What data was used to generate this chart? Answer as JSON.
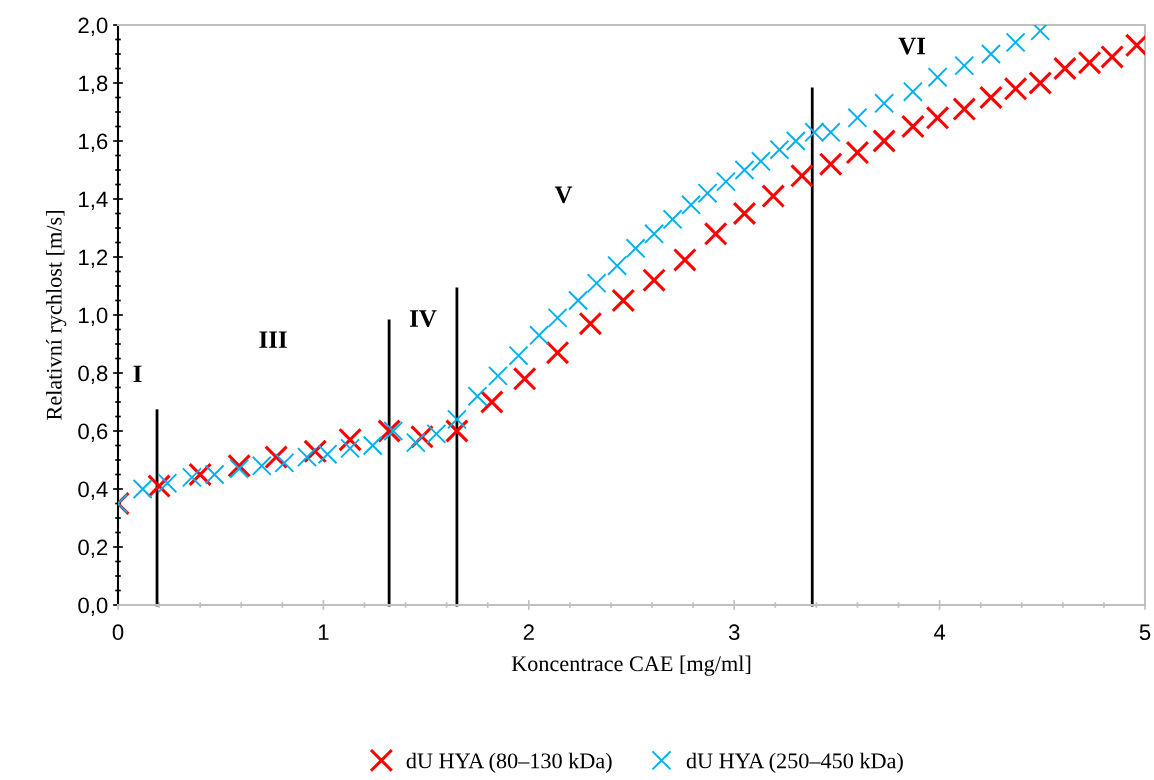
{
  "chart_data": {
    "type": "scatter",
    "xlabel": "Koncentrace CAE [mg/ml]",
    "ylabel": "Relativní rychlost [m/s]",
    "xlim": [
      0,
      5
    ],
    "xticks": [
      0,
      1,
      2,
      3,
      4,
      5
    ],
    "ylim": [
      0,
      2
    ],
    "yticks": [
      {
        "value": 0,
        "label": "0,0"
      },
      {
        "value": 0.2,
        "label": "0,2"
      },
      {
        "value": 0.4,
        "label": "0,4"
      },
      {
        "value": 0.6,
        "label": "0,6"
      },
      {
        "value": 0.8,
        "label": "0,8"
      },
      {
        "value": 1.0,
        "label": "1,0"
      },
      {
        "value": 1.2,
        "label": "1,2"
      },
      {
        "value": 1.4,
        "label": "1,4"
      },
      {
        "value": 1.6,
        "label": "1,6"
      },
      {
        "value": 1.8,
        "label": "1,8"
      },
      {
        "value": 2.0,
        "label": "2,0"
      }
    ],
    "marker": "cross",
    "grid": false,
    "legend": "bottom",
    "series": [
      {
        "name": "dU HYA (80–130 kDa)",
        "color": "#ff0000",
        "x": [
          0,
          0.2,
          0.4,
          0.59,
          0.77,
          0.96,
          1.13,
          1.32,
          1.48,
          1.65,
          1.82,
          1.98,
          2.14,
          2.3,
          2.46,
          2.61,
          2.76,
          2.91,
          3.05,
          3.19,
          3.33,
          3.47,
          3.6,
          3.73,
          3.87,
          3.99,
          4.12,
          4.25,
          4.37,
          4.49,
          4.61,
          4.73,
          4.84,
          4.96
        ],
        "values": [
          0.35,
          0.41,
          0.45,
          0.48,
          0.51,
          0.53,
          0.57,
          0.6,
          0.58,
          0.6,
          0.7,
          0.78,
          0.87,
          0.97,
          1.05,
          1.12,
          1.19,
          1.28,
          1.35,
          1.41,
          1.48,
          1.52,
          1.56,
          1.6,
          1.65,
          1.68,
          1.71,
          1.75,
          1.78,
          1.8,
          1.85,
          1.87,
          1.89,
          1.93
        ]
      },
      {
        "name": "dU HYA (250–450 kDa)",
        "color": "#00b0f0",
        "x": [
          0,
          0.12,
          0.24,
          0.36,
          0.47,
          0.59,
          0.7,
          0.81,
          0.92,
          1.02,
          1.13,
          1.24,
          1.34,
          1.45,
          1.55,
          1.65,
          1.75,
          1.85,
          1.95,
          2.05,
          2.14,
          2.24,
          2.33,
          2.43,
          2.52,
          2.61,
          2.7,
          2.79,
          2.87,
          2.96,
          3.05,
          3.13,
          3.22,
          3.3,
          3.39,
          3.47,
          3.6,
          3.73,
          3.87,
          3.99,
          4.12,
          4.25,
          4.37,
          4.49
        ],
        "values": [
          0.35,
          0.4,
          0.42,
          0.44,
          0.45,
          0.47,
          0.48,
          0.49,
          0.51,
          0.52,
          0.54,
          0.55,
          0.6,
          0.56,
          0.59,
          0.64,
          0.72,
          0.79,
          0.86,
          0.93,
          0.99,
          1.05,
          1.11,
          1.17,
          1.23,
          1.28,
          1.33,
          1.38,
          1.42,
          1.46,
          1.5,
          1.53,
          1.57,
          1.6,
          1.63,
          1.63,
          1.68,
          1.73,
          1.77,
          1.82,
          1.86,
          1.9,
          1.94,
          1.98
        ]
      },
      {
        "type": "line",
        "marker": "none",
        "color": "#000000",
        "x": [
          0.19,
          0.19
        ],
        "values": [
          0,
          0.67
        ]
      },
      {
        "type": "line",
        "marker": "none",
        "color": "#000000",
        "x": [
          1.32,
          1.32
        ],
        "values": [
          0,
          0.98
        ]
      },
      {
        "type": "line",
        "marker": "none",
        "color": "#000000",
        "x": [
          1.65,
          1.65
        ],
        "values": [
          0,
          1.09
        ]
      },
      {
        "type": "line",
        "marker": "none",
        "color": "#000000",
        "x": [
          3.38,
          3.38
        ],
        "values": [
          0,
          1.78
        ]
      }
    ],
    "annotations": [
      "I",
      "III",
      "IV",
      "V",
      "VI"
    ]
  }
}
